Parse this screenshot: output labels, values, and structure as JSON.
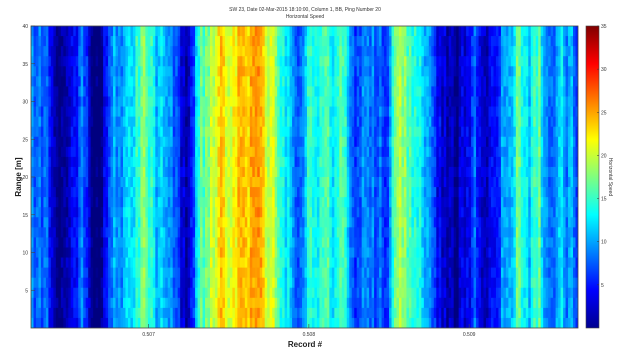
{
  "window": {
    "title_line1": "SW 23, Date 02-Mar-2015 18:10:00, Column 1, BB, Ping Number 20",
    "title_line2": "Horizontal Speed"
  },
  "chart_data": {
    "type": "heatmap",
    "title": "SW 23, Date 02-Mar-2015 18:10:00, Column 1, BB, Ping Number 20",
    "subtitle": "Horizontal Speed",
    "xlabel": "Record #",
    "ylabel": "Range [m]",
    "colorbar_label": "Horizontal Speed",
    "colormap": "jet",
    "xlim": [
      0,
      1
    ],
    "ylim": [
      0,
      40
    ],
    "clim": [
      0,
      35
    ],
    "x_ticks": [
      {
        "pos": 0.215,
        "label": "0.507"
      },
      {
        "pos": 0.508,
        "label": "0.508"
      },
      {
        "pos": 0.801,
        "label": "0.509"
      }
    ],
    "y_ticks": [
      5,
      10,
      15,
      20,
      25,
      30,
      35,
      40
    ],
    "colorbar_ticks": [
      5,
      10,
      15,
      20,
      25,
      30,
      35
    ],
    "grid": false,
    "column_speed_profile": {
      "x_fraction": [
        0.0,
        0.03,
        0.05,
        0.07,
        0.09,
        0.11,
        0.13,
        0.15,
        0.17,
        0.19,
        0.21,
        0.23,
        0.25,
        0.27,
        0.29,
        0.31,
        0.33,
        0.35,
        0.37,
        0.39,
        0.41,
        0.43,
        0.45,
        0.47,
        0.49,
        0.51,
        0.53,
        0.55,
        0.57,
        0.59,
        0.61,
        0.63,
        0.65,
        0.67,
        0.69,
        0.71,
        0.73,
        0.75,
        0.77,
        0.79,
        0.81,
        0.83,
        0.85,
        0.87,
        0.89,
        0.91,
        0.93,
        0.95,
        0.97,
        1.0
      ],
      "speed": [
        9,
        6,
        4,
        4,
        8,
        3,
        2,
        9,
        11,
        15,
        19,
        12,
        10,
        3,
        4,
        16,
        20,
        23,
        21,
        24,
        24,
        22,
        20,
        13,
        6,
        15,
        17,
        12,
        14,
        4,
        10,
        7,
        9,
        18,
        16,
        12,
        9,
        4,
        3,
        4,
        8,
        3,
        2,
        13,
        18,
        12,
        15,
        4,
        14,
        6
      ]
    }
  }
}
